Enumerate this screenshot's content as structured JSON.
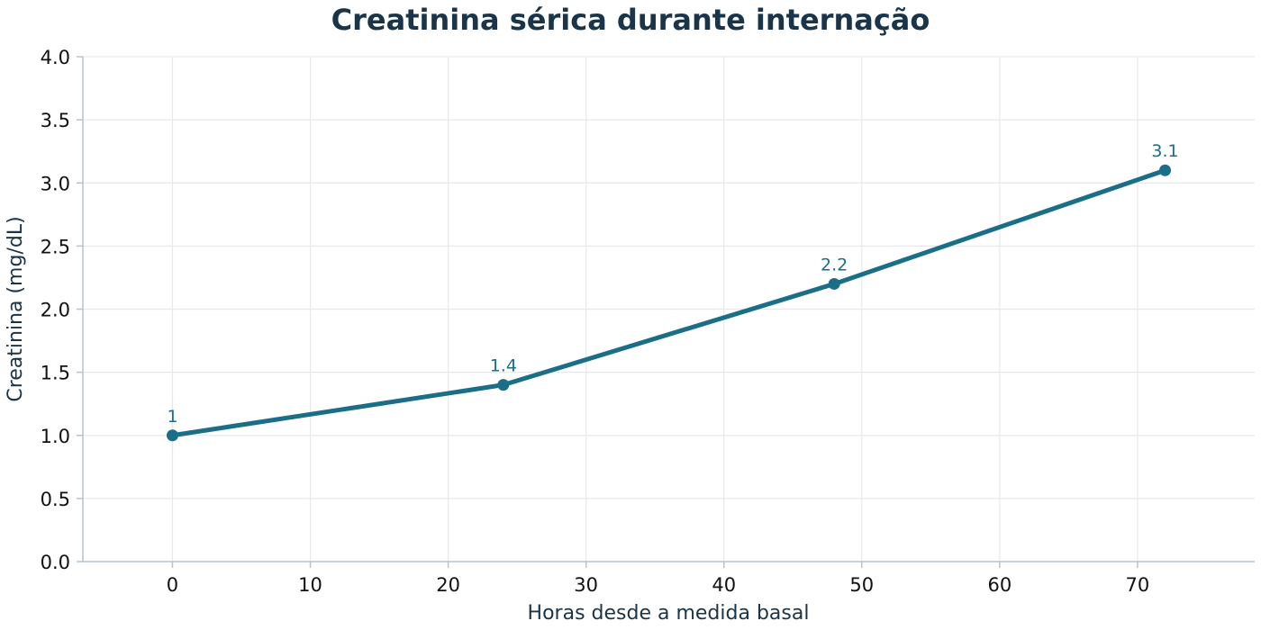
{
  "chart_data": {
    "type": "line",
    "title": "Creatinina sérica durante internação",
    "xlabel": "Horas desde a medida basal",
    "ylabel": "Creatinina (mg/dL)",
    "xlim": [
      -6.5,
      78.5
    ],
    "ylim": [
      0,
      4
    ],
    "x_ticks": [
      0,
      10,
      20,
      30,
      40,
      50,
      60,
      70
    ],
    "y_ticks": [
      "0.0",
      "0.5",
      "1.0",
      "1.5",
      "2.0",
      "2.5",
      "3.0",
      "3.5",
      "4.0"
    ],
    "grid": true,
    "series": [
      {
        "color": "#1a6e88",
        "points": [
          {
            "x": 0,
            "y": 1.0,
            "label": "1"
          },
          {
            "x": 24,
            "y": 1.4,
            "label": "1.4"
          },
          {
            "x": 48,
            "y": 2.2,
            "label": "2.2"
          },
          {
            "x": 72,
            "y": 3.1,
            "label": "3.1"
          }
        ]
      }
    ]
  }
}
